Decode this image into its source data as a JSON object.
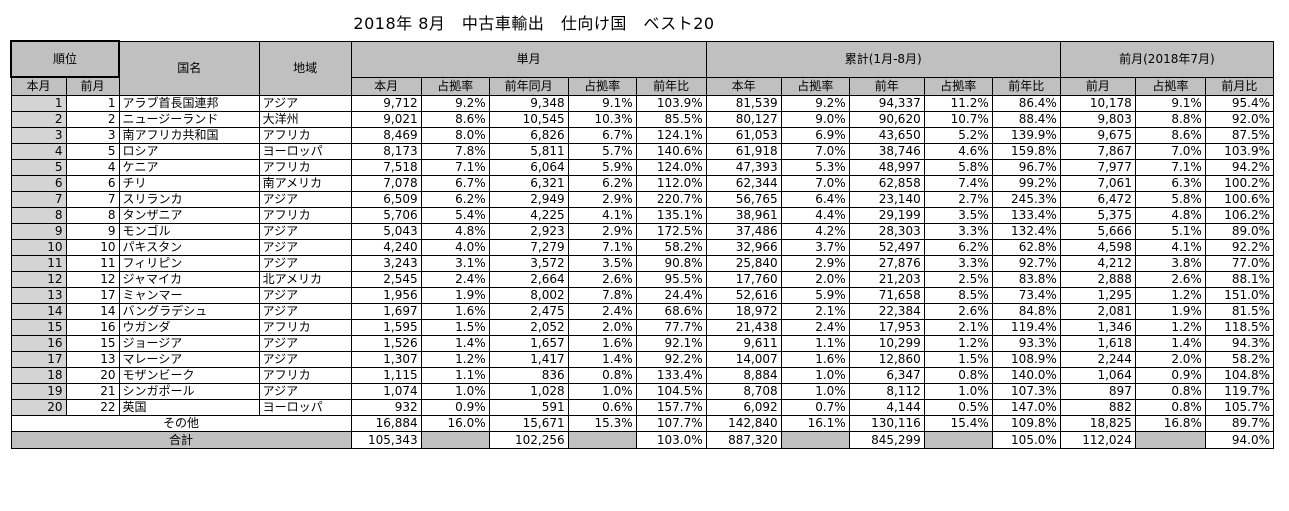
{
  "title": "2018年 8月　中古車輸出　仕向け国　ベスト20",
  "headers": {
    "rank": "順位",
    "country": "国名",
    "region": "地域",
    "monthly": "単月",
    "cumulative": "累計(1月-8月)",
    "prev_month": "前月(2018年7月)",
    "rank_this": "本月",
    "rank_prev": "前月",
    "m_this": "本月",
    "m_share": "占拠率",
    "m_prev_year": "前年同月",
    "m_share2": "占拠率",
    "m_yoy": "前年比",
    "c_this": "本年",
    "c_share": "占拠率",
    "c_prev_year": "前年",
    "c_share2": "占拠率",
    "c_yoy": "前年比",
    "p_prev": "前月",
    "p_share": "占拠率",
    "p_ratio": "前月比"
  },
  "rows": [
    [
      "1",
      "1",
      "アラブ首長国連邦",
      "アジア",
      "9,712",
      "9.2%",
      "9,348",
      "9.1%",
      "103.9%",
      "81,539",
      "9.2%",
      "94,337",
      "11.2%",
      "86.4%",
      "10,178",
      "9.1%",
      "95.4%"
    ],
    [
      "2",
      "2",
      "ニュージーランド",
      "大洋州",
      "9,021",
      "8.6%",
      "10,545",
      "10.3%",
      "85.5%",
      "80,127",
      "9.0%",
      "90,620",
      "10.7%",
      "88.4%",
      "9,803",
      "8.8%",
      "92.0%"
    ],
    [
      "3",
      "3",
      "南アフリカ共和国",
      "アフリカ",
      "8,469",
      "8.0%",
      "6,826",
      "6.7%",
      "124.1%",
      "61,053",
      "6.9%",
      "43,650",
      "5.2%",
      "139.9%",
      "9,675",
      "8.6%",
      "87.5%"
    ],
    [
      "4",
      "5",
      "ロシア",
      "ヨーロッパ",
      "8,173",
      "7.8%",
      "5,811",
      "5.7%",
      "140.6%",
      "61,918",
      "7.0%",
      "38,746",
      "4.6%",
      "159.8%",
      "7,867",
      "7.0%",
      "103.9%"
    ],
    [
      "5",
      "4",
      "ケニア",
      "アフリカ",
      "7,518",
      "7.1%",
      "6,064",
      "5.9%",
      "124.0%",
      "47,393",
      "5.3%",
      "48,997",
      "5.8%",
      "96.7%",
      "7,977",
      "7.1%",
      "94.2%"
    ],
    [
      "6",
      "6",
      "チリ",
      "南アメリカ",
      "7,078",
      "6.7%",
      "6,321",
      "6.2%",
      "112.0%",
      "62,344",
      "7.0%",
      "62,858",
      "7.4%",
      "99.2%",
      "7,061",
      "6.3%",
      "100.2%"
    ],
    [
      "7",
      "7",
      "スリランカ",
      "アジア",
      "6,509",
      "6.2%",
      "2,949",
      "2.9%",
      "220.7%",
      "56,765",
      "6.4%",
      "23,140",
      "2.7%",
      "245.3%",
      "6,472",
      "5.8%",
      "100.6%"
    ],
    [
      "8",
      "8",
      "タンザニア",
      "アフリカ",
      "5,706",
      "5.4%",
      "4,225",
      "4.1%",
      "135.1%",
      "38,961",
      "4.4%",
      "29,199",
      "3.5%",
      "133.4%",
      "5,375",
      "4.8%",
      "106.2%"
    ],
    [
      "9",
      "9",
      "モンゴル",
      "アジア",
      "5,043",
      "4.8%",
      "2,923",
      "2.9%",
      "172.5%",
      "37,486",
      "4.2%",
      "28,303",
      "3.3%",
      "132.4%",
      "5,666",
      "5.1%",
      "89.0%"
    ],
    [
      "10",
      "10",
      "パキスタン",
      "アジア",
      "4,240",
      "4.0%",
      "7,279",
      "7.1%",
      "58.2%",
      "32,966",
      "3.7%",
      "52,497",
      "6.2%",
      "62.8%",
      "4,598",
      "4.1%",
      "92.2%"
    ],
    [
      "11",
      "11",
      "フィリピン",
      "アジア",
      "3,243",
      "3.1%",
      "3,572",
      "3.5%",
      "90.8%",
      "25,840",
      "2.9%",
      "27,876",
      "3.3%",
      "92.7%",
      "4,212",
      "3.8%",
      "77.0%"
    ],
    [
      "12",
      "12",
      "ジャマイカ",
      "北アメリカ",
      "2,545",
      "2.4%",
      "2,664",
      "2.6%",
      "95.5%",
      "17,760",
      "2.0%",
      "21,203",
      "2.5%",
      "83.8%",
      "2,888",
      "2.6%",
      "88.1%"
    ],
    [
      "13",
      "17",
      "ミャンマー",
      "アジア",
      "1,956",
      "1.9%",
      "8,002",
      "7.8%",
      "24.4%",
      "52,616",
      "5.9%",
      "71,658",
      "8.5%",
      "73.4%",
      "1,295",
      "1.2%",
      "151.0%"
    ],
    [
      "14",
      "14",
      "バングラデシュ",
      "アジア",
      "1,697",
      "1.6%",
      "2,475",
      "2.4%",
      "68.6%",
      "18,972",
      "2.1%",
      "22,384",
      "2.6%",
      "84.8%",
      "2,081",
      "1.9%",
      "81.5%"
    ],
    [
      "15",
      "16",
      "ウガンダ",
      "アフリカ",
      "1,595",
      "1.5%",
      "2,052",
      "2.0%",
      "77.7%",
      "21,438",
      "2.4%",
      "17,953",
      "2.1%",
      "119.4%",
      "1,346",
      "1.2%",
      "118.5%"
    ],
    [
      "16",
      "15",
      "ジョージア",
      "アジア",
      "1,526",
      "1.4%",
      "1,657",
      "1.6%",
      "92.1%",
      "9,611",
      "1.1%",
      "10,299",
      "1.2%",
      "93.3%",
      "1,618",
      "1.4%",
      "94.3%"
    ],
    [
      "17",
      "13",
      "マレーシア",
      "アジア",
      "1,307",
      "1.2%",
      "1,417",
      "1.4%",
      "92.2%",
      "14,007",
      "1.6%",
      "12,860",
      "1.5%",
      "108.9%",
      "2,244",
      "2.0%",
      "58.2%"
    ],
    [
      "18",
      "20",
      "モザンビーク",
      "アフリカ",
      "1,115",
      "1.1%",
      "836",
      "0.8%",
      "133.4%",
      "8,884",
      "1.0%",
      "6,347",
      "0.8%",
      "140.0%",
      "1,064",
      "0.9%",
      "104.8%"
    ],
    [
      "19",
      "21",
      "シンガポール",
      "アジア",
      "1,074",
      "1.0%",
      "1,028",
      "1.0%",
      "104.5%",
      "8,708",
      "1.0%",
      "8,112",
      "1.0%",
      "107.3%",
      "897",
      "0.8%",
      "119.7%"
    ],
    [
      "20",
      "22",
      "英国",
      "ヨーロッパ",
      "932",
      "0.9%",
      "591",
      "0.6%",
      "157.7%",
      "6,092",
      "0.7%",
      "4,144",
      "0.5%",
      "147.0%",
      "882",
      "0.8%",
      "105.7%"
    ]
  ],
  "others": {
    "label": "その他",
    "values": [
      "16,884",
      "16.0%",
      "15,671",
      "15.3%",
      "107.7%",
      "142,840",
      "16.1%",
      "130,116",
      "15.4%",
      "109.8%",
      "18,825",
      "16.8%",
      "89.7%"
    ]
  },
  "total": {
    "label": "合計",
    "m_this": "105,343",
    "m_prev_year": "102,256",
    "m_yoy": "103.0%",
    "c_this": "887,320",
    "c_prev_year": "845,299",
    "c_yoy": "105.0%",
    "p_prev": "112,024",
    "p_ratio": "94.0%"
  }
}
